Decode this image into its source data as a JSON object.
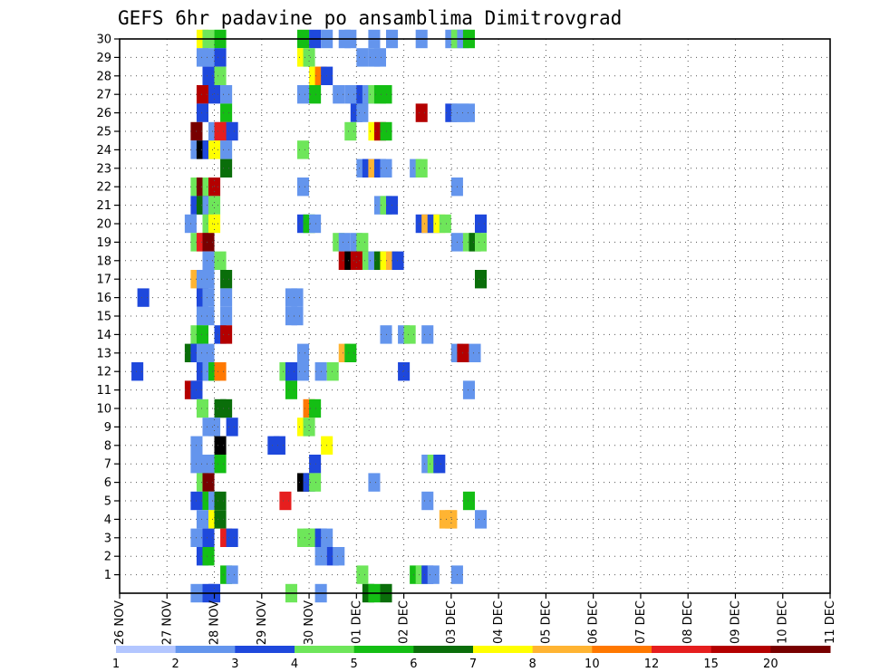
{
  "chart_data": {
    "type": "heatmap",
    "title": "GEFS 6hr padavine po ansamblima Dimitrovgrad",
    "x_labels": [
      "26 NOV",
      "27 NOV",
      "28 NOV",
      "29 NOV",
      "30 NOV",
      "01 DEC",
      "02 DEC",
      "03 DEC",
      "04 DEC",
      "05 DEC",
      "06 DEC",
      "07 DEC",
      "08 DEC",
      "09 DEC",
      "10 DEC",
      "11 DEC"
    ],
    "y_labels": [
      "1",
      "2",
      "3",
      "4",
      "5",
      "6",
      "7",
      "8",
      "9",
      "10",
      "11",
      "12",
      "13",
      "14",
      "15",
      "16",
      "17",
      "18",
      "19",
      "20",
      "21",
      "22",
      "23",
      "24",
      "25",
      "26",
      "27",
      "28",
      "29",
      "30"
    ],
    "x_unit": "6-hour steps from 26 NOV 00Z",
    "color_scale": {
      "bounds": [
        "1",
        "2",
        "3",
        "4",
        "5",
        "6",
        "7",
        "8",
        "10",
        "12",
        "15",
        "20"
      ],
      "colors": [
        "#b3c6ff",
        "#6495ed",
        "#1e48dc",
        "#6ee65a",
        "#14be14",
        "#0a6e0a",
        "#ffff00",
        "#ffb432",
        "#ff7800",
        "#e61e1e",
        "#b40000",
        "#780000"
      ]
    },
    "cells": [
      [
        30,
        6.5,
        6
      ],
      [
        30,
        7,
        3
      ],
      [
        30,
        8,
        4
      ],
      [
        30,
        15,
        4
      ],
      [
        30,
        16,
        2
      ],
      [
        30,
        17,
        1
      ],
      [
        30,
        18.5,
        1
      ],
      [
        30,
        19,
        1
      ],
      [
        30,
        21,
        1
      ],
      [
        30,
        22.5,
        1
      ],
      [
        30,
        25,
        1
      ],
      [
        30,
        27.5,
        1
      ],
      [
        30,
        28,
        3
      ],
      [
        30,
        28.5,
        1
      ],
      [
        30,
        29,
        4
      ],
      [
        29,
        6.5,
        1
      ],
      [
        29,
        7,
        1
      ],
      [
        29,
        8,
        2
      ],
      [
        29,
        15,
        6
      ],
      [
        29,
        15.5,
        3
      ],
      [
        29,
        20,
        1
      ],
      [
        29,
        21,
        1
      ],
      [
        29,
        21.5,
        1
      ],
      [
        28,
        7,
        2
      ],
      [
        28,
        8,
        3
      ],
      [
        28,
        16,
        6
      ],
      [
        28,
        16.5,
        8
      ],
      [
        28,
        17,
        2
      ],
      [
        27,
        6.5,
        10
      ],
      [
        27,
        7.5,
        2
      ],
      [
        27,
        8.5,
        1
      ],
      [
        27,
        15,
        1
      ],
      [
        27,
        16,
        4
      ],
      [
        27,
        18,
        1
      ],
      [
        27,
        19,
        1
      ],
      [
        27,
        19.5,
        1
      ],
      [
        27,
        20,
        2
      ],
      [
        27,
        20.5,
        1
      ],
      [
        27,
        21,
        3
      ],
      [
        27,
        21.5,
        4
      ],
      [
        27,
        22,
        4
      ],
      [
        26,
        6.5,
        2
      ],
      [
        26,
        8.5,
        4
      ],
      [
        26,
        19.5,
        2
      ],
      [
        26,
        20,
        1
      ],
      [
        26,
        25,
        10
      ],
      [
        26,
        27.5,
        2
      ],
      [
        26,
        28,
        1
      ],
      [
        26,
        28.5,
        1
      ],
      [
        26,
        29,
        1
      ],
      [
        25,
        6,
        11
      ],
      [
        25,
        7.5,
        1
      ],
      [
        25,
        8,
        9
      ],
      [
        25,
        8.5,
        9
      ],
      [
        25,
        9,
        2
      ],
      [
        25,
        19,
        3
      ],
      [
        25,
        21,
        6
      ],
      [
        25,
        21.5,
        10
      ],
      [
        25,
        22,
        4
      ],
      [
        24,
        6,
        1
      ],
      [
        24,
        6.5,
        12
      ],
      [
        24,
        7,
        2
      ],
      [
        24,
        7.5,
        6
      ],
      [
        24,
        8.5,
        1
      ],
      [
        24,
        15,
        3
      ],
      [
        23,
        8.5,
        5
      ],
      [
        23,
        20,
        1
      ],
      [
        23,
        20.5,
        2
      ],
      [
        23,
        21,
        7
      ],
      [
        23,
        21.5,
        2
      ],
      [
        23,
        22,
        1
      ],
      [
        23,
        24.5,
        1
      ],
      [
        23,
        25,
        3
      ],
      [
        22,
        6,
        3
      ],
      [
        22,
        6.5,
        11
      ],
      [
        22,
        7,
        3
      ],
      [
        22,
        7.5,
        10
      ],
      [
        22,
        15,
        1
      ],
      [
        22,
        28,
        1
      ],
      [
        21,
        6,
        2
      ],
      [
        21,
        6.5,
        5
      ],
      [
        21,
        7,
        1
      ],
      [
        21,
        7.5,
        3
      ],
      [
        21,
        21.5,
        1
      ],
      [
        21,
        22,
        3
      ],
      [
        21,
        22.5,
        2
      ],
      [
        20,
        5.5,
        1
      ],
      [
        20,
        7,
        3
      ],
      [
        20,
        7.5,
        6
      ],
      [
        20,
        15,
        2
      ],
      [
        20,
        15.5,
        4
      ],
      [
        20,
        16,
        1
      ],
      [
        20,
        25,
        2
      ],
      [
        20,
        25.5,
        7
      ],
      [
        20,
        26,
        2
      ],
      [
        20,
        26.5,
        6
      ],
      [
        20,
        27,
        3
      ],
      [
        20,
        30,
        2
      ],
      [
        19,
        6,
        3
      ],
      [
        19,
        6.5,
        9
      ],
      [
        19,
        7,
        11
      ],
      [
        19,
        18,
        3
      ],
      [
        19,
        18.5,
        1
      ],
      [
        19,
        19.5,
        1
      ],
      [
        19,
        20,
        3
      ],
      [
        19,
        28,
        1
      ],
      [
        19,
        29,
        3
      ],
      [
        19,
        29.5,
        5
      ],
      [
        19,
        30,
        3
      ],
      [
        18,
        7,
        1
      ],
      [
        18,
        8,
        3
      ],
      [
        18,
        18.5,
        10
      ],
      [
        18,
        19,
        12
      ],
      [
        18,
        19.5,
        10
      ],
      [
        18,
        20,
        10
      ],
      [
        18,
        20.5,
        3
      ],
      [
        18,
        21,
        1
      ],
      [
        18,
        21.5,
        5
      ],
      [
        18,
        22,
        6
      ],
      [
        18,
        22.5,
        7
      ],
      [
        18,
        23,
        2
      ],
      [
        17,
        6,
        7
      ],
      [
        17,
        6.5,
        1
      ],
      [
        17,
        7,
        1
      ],
      [
        17,
        8.5,
        5
      ],
      [
        17,
        30,
        5
      ],
      [
        16,
        1.5,
        2
      ],
      [
        16,
        6.5,
        2
      ],
      [
        16,
        7,
        1
      ],
      [
        16,
        8.5,
        1
      ],
      [
        16,
        14,
        1
      ],
      [
        16,
        14.5,
        1
      ],
      [
        15,
        6.5,
        1
      ],
      [
        15,
        7,
        1
      ],
      [
        15,
        8.5,
        1
      ],
      [
        15,
        14,
        1
      ],
      [
        15,
        14.5,
        1
      ],
      [
        14,
        6,
        3
      ],
      [
        14,
        6.5,
        4
      ],
      [
        14,
        8,
        2
      ],
      [
        14,
        8.5,
        10
      ],
      [
        14,
        22,
        1
      ],
      [
        14,
        23.5,
        1
      ],
      [
        14,
        24,
        3
      ],
      [
        14,
        25.5,
        1
      ],
      [
        13,
        5.5,
        5
      ],
      [
        13,
        6,
        2
      ],
      [
        13,
        6.5,
        1
      ],
      [
        13,
        7,
        1
      ],
      [
        13,
        15,
        1
      ],
      [
        13,
        18.5,
        7
      ],
      [
        13,
        19,
        4
      ],
      [
        13,
        28,
        1
      ],
      [
        13,
        28.5,
        10
      ],
      [
        13,
        29.5,
        1
      ],
      [
        12,
        1,
        2
      ],
      [
        12,
        6.5,
        2
      ],
      [
        12,
        7,
        1
      ],
      [
        12,
        7.5,
        4
      ],
      [
        12,
        8,
        8
      ],
      [
        12,
        13.5,
        3
      ],
      [
        12,
        14,
        2
      ],
      [
        12,
        15,
        1
      ],
      [
        12,
        16.5,
        1
      ],
      [
        12,
        17.5,
        3
      ],
      [
        12,
        23.5,
        2
      ],
      [
        11,
        5.5,
        10
      ],
      [
        11,
        6,
        2
      ],
      [
        11,
        14,
        4
      ],
      [
        11,
        29,
        1
      ],
      [
        10,
        6.5,
        3
      ],
      [
        10,
        8,
        5
      ],
      [
        10,
        8.5,
        5
      ],
      [
        10,
        15.5,
        8
      ],
      [
        10,
        16,
        4
      ],
      [
        9,
        7,
        1
      ],
      [
        9,
        7.5,
        1
      ],
      [
        9,
        9,
        2
      ],
      [
        9,
        15,
        6
      ],
      [
        9,
        15.5,
        3
      ],
      [
        8,
        6,
        1
      ],
      [
        8,
        8,
        12
      ],
      [
        8,
        12.5,
        2
      ],
      [
        8,
        13,
        2
      ],
      [
        8,
        17,
        6
      ],
      [
        7,
        6,
        1
      ],
      [
        7,
        6.5,
        1
      ],
      [
        7,
        7,
        1
      ],
      [
        7,
        8,
        4
      ],
      [
        7,
        16,
        2
      ],
      [
        7,
        25.5,
        1
      ],
      [
        7,
        26,
        3
      ],
      [
        7,
        26.5,
        2
      ],
      [
        6,
        6.5,
        3
      ],
      [
        6,
        7,
        11
      ],
      [
        6,
        15,
        12
      ],
      [
        6,
        15.5,
        2
      ],
      [
        6,
        16,
        3
      ],
      [
        6,
        21,
        1
      ],
      [
        5,
        6,
        2
      ],
      [
        5,
        7,
        4
      ],
      [
        5,
        7.5,
        1
      ],
      [
        5,
        8,
        5
      ],
      [
        5,
        13.5,
        9
      ],
      [
        5,
        25.5,
        1
      ],
      [
        5,
        29,
        4
      ],
      [
        4,
        6.5,
        1
      ],
      [
        4,
        7.5,
        6
      ],
      [
        4,
        8,
        5
      ],
      [
        4,
        27,
        7
      ],
      [
        4,
        27.5,
        7
      ],
      [
        4,
        30,
        1
      ],
      [
        3,
        6,
        1
      ],
      [
        3,
        7,
        2
      ],
      [
        3,
        8.5,
        9
      ],
      [
        3,
        9,
        2
      ],
      [
        3,
        15,
        3
      ],
      [
        3,
        15.5,
        3
      ],
      [
        3,
        16,
        3
      ],
      [
        3,
        16.5,
        2
      ],
      [
        3,
        17,
        1
      ],
      [
        2,
        6.5,
        2
      ],
      [
        2,
        7,
        4
      ],
      [
        2,
        16.5,
        1
      ],
      [
        2,
        17.5,
        2
      ],
      [
        2,
        18,
        1
      ],
      [
        1,
        8.5,
        4
      ],
      [
        1,
        9,
        1
      ],
      [
        1,
        20,
        3
      ],
      [
        1,
        24.5,
        4
      ],
      [
        1,
        25,
        3
      ],
      [
        1,
        25.5,
        2
      ],
      [
        1,
        26,
        1
      ],
      [
        1,
        28,
        1
      ],
      [
        0,
        6,
        1
      ],
      [
        0,
        7,
        2
      ],
      [
        0,
        7.5,
        2
      ],
      [
        0,
        14,
        3
      ],
      [
        0,
        16.5,
        1
      ],
      [
        0,
        20.5,
        5
      ],
      [
        0,
        21,
        4
      ],
      [
        0,
        22,
        5
      ]
    ]
  }
}
